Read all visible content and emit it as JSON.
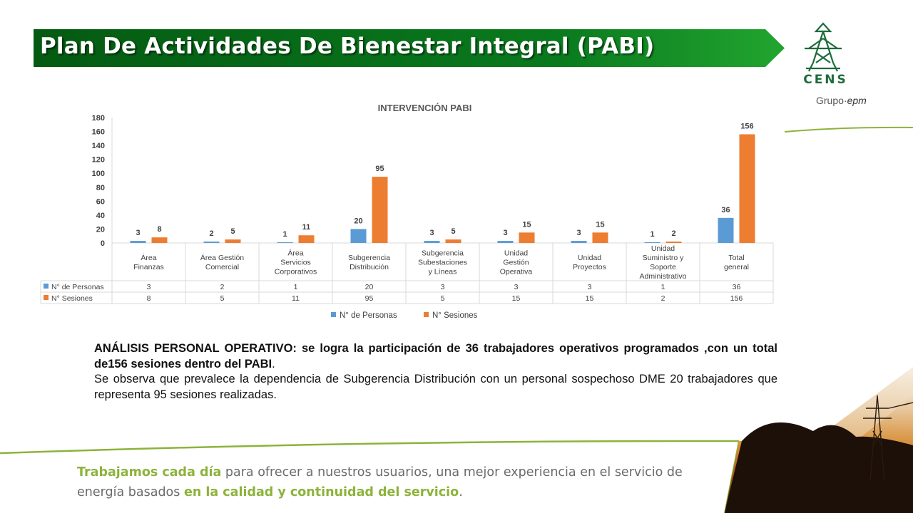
{
  "header": {
    "title": "Plan De Actividades De Bienestar Integral (PABI)",
    "banner_color": "#0a7a1e"
  },
  "logo": {
    "name": "CENS",
    "group": "Grupo·",
    "group_brand": "epm",
    "color": "#1d6b3a"
  },
  "chart_data": {
    "type": "bar",
    "title": "INTERVENCIÓN PABI",
    "categories": [
      "Área Finanzas",
      "Área Gestión Comercial",
      "Área Servicios Corporativos",
      "Subgerencia Distribución",
      "Subgerencia Subestaciones y Líneas",
      "Unidad Gestión Operativa",
      "Unidad Proyectos",
      "Unidad Suministro y Soporte Administrativo",
      "Total general"
    ],
    "series": [
      {
        "name": "N° de Personas",
        "values": [
          3,
          2,
          1,
          20,
          3,
          3,
          3,
          1,
          36
        ],
        "color": "#5b9bd5"
      },
      {
        "name": "N° Sesiones",
        "values": [
          8,
          5,
          11,
          95,
          5,
          15,
          15,
          2,
          156
        ],
        "color": "#ed7d31"
      }
    ],
    "ylim": [
      0,
      180
    ],
    "yticks": [
      0,
      20,
      40,
      60,
      80,
      100,
      120,
      140,
      160,
      180
    ],
    "grid": false,
    "legend": "bottom",
    "data_table": true
  },
  "analysis": {
    "bold": "ANÁLISIS PERSONAL OPERATIVO: se logra la participación de 36 trabajadores operativos programados ,con un total de156 sesiones  dentro del PABI",
    "bold_end": ".",
    "line2": "Se observa que prevalece la dependencia de Subgerencia Distribución con un personal sospechoso DME 20 trabajadores  que representa 95 sesiones realizadas."
  },
  "footer": {
    "hl1": "Trabajamos cada día",
    "t1": " para ofrecer a nuestros usuarios, una mejor experiencia en el servicio de energía basados ",
    "hl2": "en la calidad y continuidad del servicio",
    "t2": ".",
    "accent": "#8cb33a"
  }
}
